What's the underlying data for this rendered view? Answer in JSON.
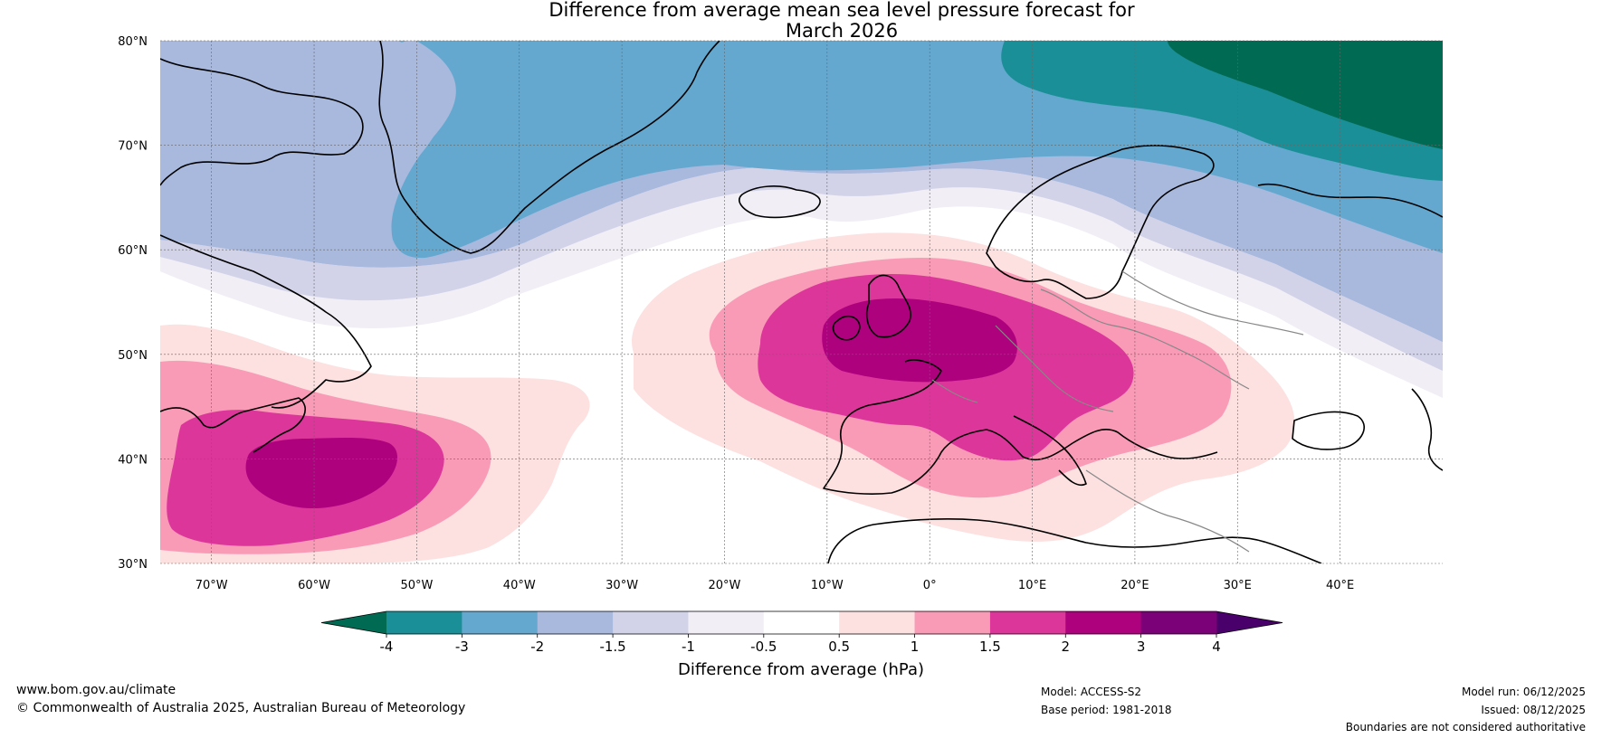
{
  "title": {
    "line1": "Difference from average mean sea level pressure forecast for",
    "line2": "March 2026"
  },
  "axes": {
    "lat_labels": [
      "80°N",
      "70°N",
      "60°N",
      "50°N",
      "40°N",
      "30°N"
    ],
    "lon_labels": [
      "70°W",
      "60°W",
      "50°W",
      "40°W",
      "30°W",
      "20°W",
      "10°W",
      "0°",
      "10°E",
      "20°E",
      "30°E",
      "40°E"
    ],
    "lat_range": [
      30,
      80
    ],
    "lon_range": [
      -75,
      50
    ]
  },
  "colorbar": {
    "ticks": [
      "-4",
      "-3",
      "-2",
      "-1.5",
      "-1",
      "-0.5",
      "0.5",
      "1",
      "1.5",
      "2",
      "3",
      "4"
    ],
    "colors": [
      "#1b8f97",
      "#64a8cf",
      "#a8b9dd",
      "#d2d3e8",
      "#f1eef6",
      "#ffffff",
      "#fde0e0",
      "#f99bb7",
      "#dd369b",
      "#ae017e",
      "#7a0177"
    ],
    "low_extend_color": "#006a52",
    "high_extend_color": "#49006a",
    "label": "Difference from average (hPa)"
  },
  "footer": {
    "website": "www.bom.gov.au/climate",
    "copyright": "© Commonwealth of Australia 2025, Australian Bureau of Meteorology",
    "model": "Model: ACCESS-S2",
    "base_period": "Base period: 1981-2018",
    "model_run": "Model run: 06/12/2025",
    "issued": "Issued: 08/12/2025",
    "disclaimer": "Boundaries are not considered authoritative"
  }
}
